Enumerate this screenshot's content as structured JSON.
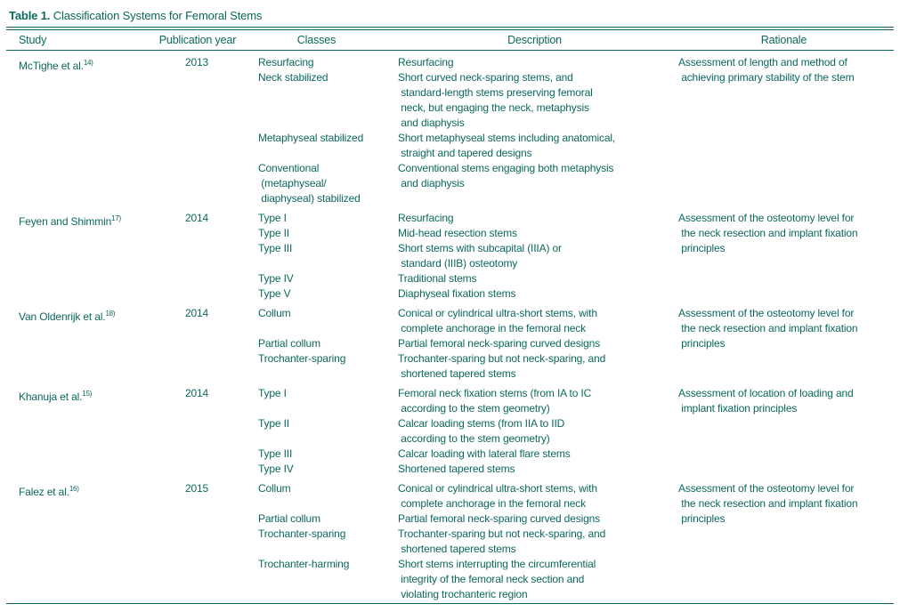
{
  "colors": {
    "accent": "#0c685c",
    "background": "#ffffff"
  },
  "table": {
    "title_bold": "Table 1.",
    "title_rest": " Classification Systems for Femoral Stems",
    "columns": [
      "Study",
      "Publication year",
      "Classes",
      "Description",
      "Rationale"
    ],
    "rows": [
      {
        "study": "McTighe et al.",
        "ref": "14)",
        "year": "2013",
        "entries": [
          {
            "class": "Resurfacing",
            "description": "Resurfacing"
          },
          {
            "class": "Neck stabilized",
            "description": "Short curved neck-sparing stems, and\n standard-length stems preserving femoral\n neck, but engaging the neck, metaphysis\n and diaphysis"
          },
          {
            "class": "Metaphyseal stabilized",
            "description": "Short metaphyseal stems including anatomical,\n straight and tapered designs"
          },
          {
            "class": "Conventional\n (metaphyseal/\n diaphyseal) stabilized",
            "description": "Conventional stems engaging both metaphysis\n and diaphysis"
          }
        ],
        "rationale": "Assessment of length and method of\n achieving primary stability of the stem"
      },
      {
        "study": "Feyen and Shimmin",
        "ref": "17)",
        "year": "2014",
        "entries": [
          {
            "class": "Type I",
            "description": "Resurfacing"
          },
          {
            "class": "Type II",
            "description": "Mid-head resection stems"
          },
          {
            "class": "Type III",
            "description": "Short stems with subcapital (IIIA) or\n standard (IIIB) osteotomy"
          },
          {
            "class": "Type IV",
            "description": "Traditional stems"
          },
          {
            "class": "Type V",
            "description": "Diaphyseal fixation stems"
          }
        ],
        "rationale": "Assessment of the osteotomy level for\n the neck resection and implant fixation\n principles"
      },
      {
        "study": "Van Oldenrijk et al.",
        "ref": "18)",
        "year": "2014",
        "entries": [
          {
            "class": "Collum",
            "description": "Conical or cylindrical ultra-short stems, with\n complete anchorage in the femoral neck"
          },
          {
            "class": "Partial collum",
            "description": "Partial femoral neck-sparing curved designs"
          },
          {
            "class": "Trochanter-sparing",
            "description": "Trochanter-sparing but not neck-sparing, and\n shortened tapered stems"
          }
        ],
        "rationale": "Assessment of the osteotomy level for\n the neck resection and implant fixation\n principles"
      },
      {
        "study": "Khanuja et al.",
        "ref": "15)",
        "year": "2014",
        "entries": [
          {
            "class": "Type I",
            "description": "Femoral neck fixation stems (from IA to IC\n according to the stem geometry)"
          },
          {
            "class": "Type II",
            "description": "Calcar loading stems (from IIA to IID\n according to the stem geometry)"
          },
          {
            "class": "Type III",
            "description": "Calcar loading with lateral flare stems"
          },
          {
            "class": "Type IV",
            "description": "Shortened tapered stems"
          }
        ],
        "rationale": "Assessment of location of loading and\n implant fixation principles"
      },
      {
        "study": "Falez et al.",
        "ref": "16)",
        "year": "2015",
        "entries": [
          {
            "class": "Collum",
            "description": "Conical or cylindrical ultra-short stems, with\n complete anchorage in the femoral neck"
          },
          {
            "class": "Partial collum",
            "description": "Partial femoral neck-sparing curved designs"
          },
          {
            "class": "Trochanter-sparing",
            "description": "Trochanter-sparing but not neck-sparing, and\n shortened tapered stems"
          },
          {
            "class": "Trochanter-harming",
            "description": "Short stems interrupting the circumferential\n integrity of the femoral neck section and\n violating trochanteric region"
          }
        ],
        "rationale": "Assessment of the osteotomy level for\n the neck resection and implant fixation\n principles"
      }
    ]
  }
}
